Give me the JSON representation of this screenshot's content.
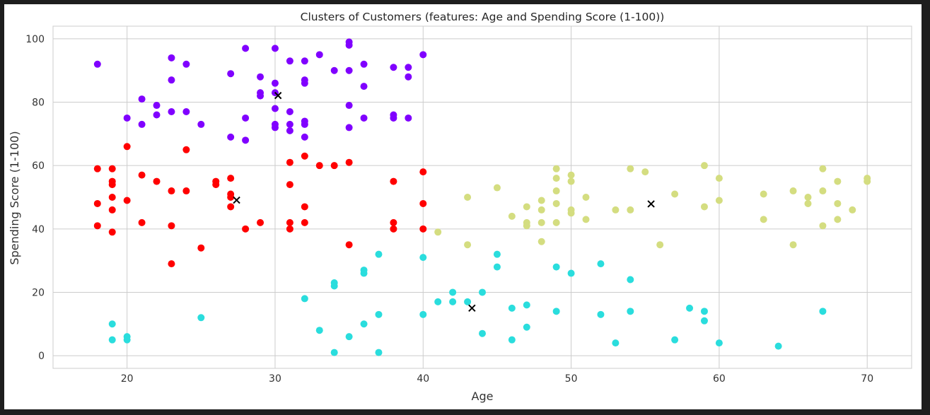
{
  "chart_data": {
    "type": "scatter",
    "title": "Clusters of Customers (features: Age and Spending Score (1-100))",
    "xlabel": "Age",
    "ylabel": "Spending Score (1-100)",
    "xlim": [
      15,
      73
    ],
    "ylim": [
      -4,
      104
    ],
    "x_ticks": [
      20,
      30,
      40,
      50,
      60,
      70
    ],
    "y_ticks": [
      0,
      20,
      40,
      60,
      80,
      100
    ],
    "grid": true,
    "legend": "none",
    "series": [
      {
        "color": "#8000ff",
        "points": [
          [
            18,
            92
          ],
          [
            20,
            75
          ],
          [
            21,
            81
          ],
          [
            21,
            73
          ],
          [
            22,
            79
          ],
          [
            22,
            76
          ],
          [
            23,
            94
          ],
          [
            23,
            87
          ],
          [
            23,
            77
          ],
          [
            24,
            92
          ],
          [
            24,
            77
          ],
          [
            25,
            73
          ],
          [
            27,
            89
          ],
          [
            27,
            69
          ],
          [
            28,
            97
          ],
          [
            28,
            75
          ],
          [
            28,
            68
          ],
          [
            29,
            88
          ],
          [
            29,
            83
          ],
          [
            29,
            82
          ],
          [
            30,
            97
          ],
          [
            30,
            86
          ],
          [
            30,
            83
          ],
          [
            30,
            78
          ],
          [
            30,
            73
          ],
          [
            30,
            72
          ],
          [
            31,
            93
          ],
          [
            31,
            77
          ],
          [
            31,
            73
          ],
          [
            31,
            71
          ],
          [
            32,
            93
          ],
          [
            32,
            87
          ],
          [
            32,
            86
          ],
          [
            32,
            74
          ],
          [
            32,
            73
          ],
          [
            32,
            69
          ],
          [
            33,
            95
          ],
          [
            34,
            90
          ],
          [
            35,
            99
          ],
          [
            35,
            98
          ],
          [
            35,
            90
          ],
          [
            35,
            79
          ],
          [
            35,
            72
          ],
          [
            36,
            92
          ],
          [
            36,
            85
          ],
          [
            36,
            75
          ],
          [
            38,
            91
          ],
          [
            38,
            76
          ],
          [
            38,
            75
          ],
          [
            39,
            91
          ],
          [
            39,
            88
          ],
          [
            39,
            75
          ],
          [
            40,
            95
          ]
        ]
      },
      {
        "color": "#ff0000",
        "points": [
          [
            18,
            59
          ],
          [
            18,
            48
          ],
          [
            18,
            41
          ],
          [
            19,
            59
          ],
          [
            19,
            55
          ],
          [
            19,
            54
          ],
          [
            19,
            50
          ],
          [
            19,
            46
          ],
          [
            19,
            39
          ],
          [
            20,
            66
          ],
          [
            20,
            49
          ],
          [
            21,
            57
          ],
          [
            21,
            42
          ],
          [
            22,
            55
          ],
          [
            23,
            52
          ],
          [
            23,
            41
          ],
          [
            23,
            29
          ],
          [
            24,
            65
          ],
          [
            24,
            52
          ],
          [
            25,
            34
          ],
          [
            26,
            55
          ],
          [
            26,
            54
          ],
          [
            27,
            56
          ],
          [
            27,
            51
          ],
          [
            27,
            50
          ],
          [
            27,
            47
          ],
          [
            28,
            40
          ],
          [
            29,
            42
          ],
          [
            31,
            61
          ],
          [
            31,
            54
          ],
          [
            31,
            42
          ],
          [
            31,
            40
          ],
          [
            32,
            63
          ],
          [
            32,
            47
          ],
          [
            32,
            42
          ],
          [
            33,
            60
          ],
          [
            34,
            60
          ],
          [
            35,
            61
          ],
          [
            35,
            35
          ],
          [
            38,
            55
          ],
          [
            38,
            42
          ],
          [
            38,
            40
          ],
          [
            40,
            58
          ],
          [
            40,
            48
          ],
          [
            40,
            40
          ]
        ]
      },
      {
        "color": "#d4dd80",
        "points": [
          [
            41,
            39
          ],
          [
            43,
            50
          ],
          [
            43,
            35
          ],
          [
            45,
            53
          ],
          [
            46,
            44
          ],
          [
            47,
            47
          ],
          [
            47,
            42
          ],
          [
            47,
            41
          ],
          [
            48,
            49
          ],
          [
            48,
            46
          ],
          [
            48,
            42
          ],
          [
            48,
            36
          ],
          [
            49,
            59
          ],
          [
            49,
            56
          ],
          [
            49,
            52
          ],
          [
            49,
            48
          ],
          [
            49,
            42
          ],
          [
            50,
            57
          ],
          [
            50,
            55
          ],
          [
            50,
            46
          ],
          [
            50,
            45
          ],
          [
            51,
            50
          ],
          [
            51,
            43
          ],
          [
            53,
            46
          ],
          [
            54,
            59
          ],
          [
            54,
            46
          ],
          [
            55,
            58
          ],
          [
            56,
            35
          ],
          [
            57,
            51
          ],
          [
            59,
            60
          ],
          [
            59,
            47
          ],
          [
            60,
            56
          ],
          [
            60,
            49
          ],
          [
            63,
            51
          ],
          [
            63,
            43
          ],
          [
            65,
            52
          ],
          [
            65,
            35
          ],
          [
            66,
            50
          ],
          [
            66,
            48
          ],
          [
            67,
            59
          ],
          [
            67,
            52
          ],
          [
            67,
            41
          ],
          [
            68,
            55
          ],
          [
            68,
            48
          ],
          [
            68,
            43
          ],
          [
            69,
            46
          ],
          [
            70,
            56
          ],
          [
            70,
            55
          ]
        ]
      },
      {
        "color": "#2adddd",
        "points": [
          [
            19,
            10
          ],
          [
            19,
            5
          ],
          [
            20,
            6
          ],
          [
            20,
            5
          ],
          [
            25,
            12
          ],
          [
            32,
            18
          ],
          [
            33,
            8
          ],
          [
            34,
            23
          ],
          [
            34,
            22
          ],
          [
            34,
            1
          ],
          [
            35,
            6
          ],
          [
            36,
            27
          ],
          [
            36,
            26
          ],
          [
            36,
            10
          ],
          [
            37,
            32
          ],
          [
            37,
            13
          ],
          [
            37,
            1
          ],
          [
            40,
            31
          ],
          [
            40,
            13
          ],
          [
            41,
            17
          ],
          [
            42,
            20
          ],
          [
            42,
            17
          ],
          [
            43,
            17
          ],
          [
            44,
            20
          ],
          [
            44,
            7
          ],
          [
            45,
            32
          ],
          [
            45,
            28
          ],
          [
            46,
            15
          ],
          [
            46,
            5
          ],
          [
            47,
            16
          ],
          [
            47,
            9
          ],
          [
            49,
            28
          ],
          [
            49,
            14
          ],
          [
            50,
            26
          ],
          [
            52,
            29
          ],
          [
            52,
            13
          ],
          [
            53,
            4
          ],
          [
            54,
            24
          ],
          [
            54,
            14
          ],
          [
            57,
            5
          ],
          [
            58,
            15
          ],
          [
            59,
            14
          ],
          [
            59,
            11
          ],
          [
            60,
            4
          ],
          [
            64,
            3
          ],
          [
            67,
            14
          ]
        ]
      }
    ],
    "centroids": {
      "color": "#000000",
      "marker": "x",
      "points": [
        [
          30.2,
          82.1
        ],
        [
          27.4,
          49.1
        ],
        [
          55.4,
          47.9
        ],
        [
          43.3,
          15.0
        ]
      ]
    }
  }
}
